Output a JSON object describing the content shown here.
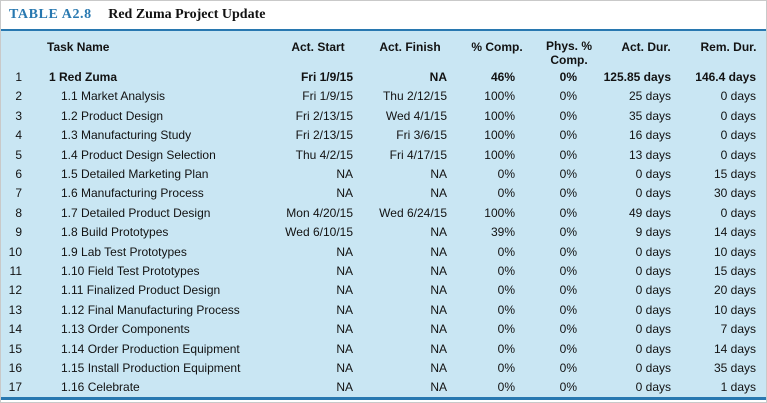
{
  "title": {
    "label": "TABLE A2.8",
    "text": "Red Zuma Project Update"
  },
  "colors": {
    "accent_blue": "#2878b0",
    "table_background": "#c9e6f3",
    "title_text": "#121212"
  },
  "table": {
    "columns": [
      "Task Name",
      "Act. Start",
      "Act. Finish",
      "% Comp.",
      "Phys. % Comp.",
      "Act. Dur.",
      "Rem. Dur."
    ],
    "rows": [
      {
        "num": "1",
        "task": "1 Red Zuma",
        "indent": 0,
        "bold": true,
        "start": "Fri 1/9/15",
        "finish": "NA",
        "comp": "46%",
        "phys": "0%",
        "act_dur": "125.85 days",
        "rem_dur": "146.4 days"
      },
      {
        "num": "2",
        "task": "1.1 Market Analysis",
        "indent": 1,
        "bold": false,
        "start": "Fri 1/9/15",
        "finish": "Thu 2/12/15",
        "comp": "100%",
        "phys": "0%",
        "act_dur": "25 days",
        "rem_dur": "0 days"
      },
      {
        "num": "3",
        "task": "1.2 Product Design",
        "indent": 1,
        "bold": false,
        "start": "Fri 2/13/15",
        "finish": "Wed 4/1/15",
        "comp": "100%",
        "phys": "0%",
        "act_dur": "35 days",
        "rem_dur": "0 days"
      },
      {
        "num": "4",
        "task": "1.3 Manufacturing Study",
        "indent": 1,
        "bold": false,
        "start": "Fri 2/13/15",
        "finish": "Fri 3/6/15",
        "comp": "100%",
        "phys": "0%",
        "act_dur": "16 days",
        "rem_dur": "0 days"
      },
      {
        "num": "5",
        "task": "1.4 Product Design Selection",
        "indent": 1,
        "bold": false,
        "start": "Thu 4/2/15",
        "finish": "Fri 4/17/15",
        "comp": "100%",
        "phys": "0%",
        "act_dur": "13 days",
        "rem_dur": "0 days"
      },
      {
        "num": "6",
        "task": "1.5 Detailed Marketing Plan",
        "indent": 1,
        "bold": false,
        "start": "NA",
        "finish": "NA",
        "comp": "0%",
        "phys": "0%",
        "act_dur": "0 days",
        "rem_dur": "15 days"
      },
      {
        "num": "7",
        "task": "1.6 Manufacturing Process",
        "indent": 1,
        "bold": false,
        "start": "NA",
        "finish": "NA",
        "comp": "0%",
        "phys": "0%",
        "act_dur": "0 days",
        "rem_dur": "30 days"
      },
      {
        "num": "8",
        "task": "1.7 Detailed Product Design",
        "indent": 1,
        "bold": false,
        "start": "Mon 4/20/15",
        "finish": "Wed 6/24/15",
        "comp": "100%",
        "phys": "0%",
        "act_dur": "49 days",
        "rem_dur": "0 days"
      },
      {
        "num": "9",
        "task": "1.8 Build Prototypes",
        "indent": 1,
        "bold": false,
        "start": "Wed 6/10/15",
        "finish": "NA",
        "comp": "39%",
        "phys": "0%",
        "act_dur": "9 days",
        "rem_dur": "14 days"
      },
      {
        "num": "10",
        "task": "1.9 Lab Test Prototypes",
        "indent": 1,
        "bold": false,
        "start": "NA",
        "finish": "NA",
        "comp": "0%",
        "phys": "0%",
        "act_dur": "0 days",
        "rem_dur": "10 days"
      },
      {
        "num": "11",
        "task": "1.10 Field Test Prototypes",
        "indent": 1,
        "bold": false,
        "start": "NA",
        "finish": "NA",
        "comp": "0%",
        "phys": "0%",
        "act_dur": "0 days",
        "rem_dur": "15 days"
      },
      {
        "num": "12",
        "task": "1.11 Finalized Product Design",
        "indent": 1,
        "bold": false,
        "start": "NA",
        "finish": "NA",
        "comp": "0%",
        "phys": "0%",
        "act_dur": "0 days",
        "rem_dur": "20 days"
      },
      {
        "num": "13",
        "task": "1.12 Final Manufacturing Process",
        "indent": 1,
        "bold": false,
        "start": "NA",
        "finish": "NA",
        "comp": "0%",
        "phys": "0%",
        "act_dur": "0 days",
        "rem_dur": "10 days"
      },
      {
        "num": "14",
        "task": "1.13 Order Components",
        "indent": 1,
        "bold": false,
        "start": "NA",
        "finish": "NA",
        "comp": "0%",
        "phys": "0%",
        "act_dur": "0 days",
        "rem_dur": "7 days"
      },
      {
        "num": "15",
        "task": "1.14 Order Production Equipment",
        "indent": 1,
        "bold": false,
        "start": "NA",
        "finish": "NA",
        "comp": "0%",
        "phys": "0%",
        "act_dur": "0 days",
        "rem_dur": "14 days"
      },
      {
        "num": "16",
        "task": "1.15 Install Production Equipment",
        "indent": 1,
        "bold": false,
        "start": "NA",
        "finish": "NA",
        "comp": "0%",
        "phys": "0%",
        "act_dur": "0 days",
        "rem_dur": "35 days"
      },
      {
        "num": "17",
        "task": "1.16 Celebrate",
        "indent": 1,
        "bold": false,
        "start": "NA",
        "finish": "NA",
        "comp": "0%",
        "phys": "0%",
        "act_dur": "0 days",
        "rem_dur": "1 days"
      }
    ]
  }
}
